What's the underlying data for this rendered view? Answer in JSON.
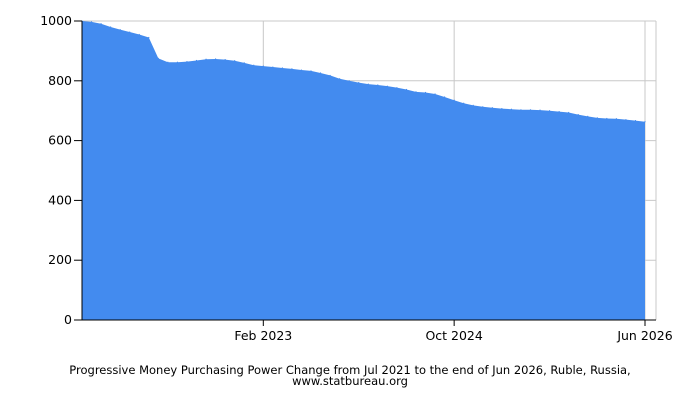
{
  "chart_data": {
    "type": "area",
    "title": "",
    "xlabel": "",
    "ylabel": "",
    "caption": "Progressive Money Purchasing Power Change from Jul 2021 to the end of Jun 2026, Ruble, Russia, www.statbureau.org",
    "x_tick_labels": [
      "Feb 2023",
      "Oct 2024",
      "Jun 2026"
    ],
    "y_tick_labels": [
      "0",
      "200",
      "400",
      "600",
      "800",
      "1000"
    ],
    "ylim": [
      0,
      1000
    ],
    "grid": true,
    "legend": "none",
    "fill_color": "#438BEF",
    "series": [
      {
        "x": [
          "Jul 2021",
          "Aug 2021",
          "Sep 2021",
          "Oct 2021",
          "Nov 2021",
          "Dec 2021",
          "Jan 2022",
          "Feb 2022",
          "Mar 2022",
          "Apr 2022",
          "May 2022",
          "Jun 2022",
          "Jul 2022",
          "Aug 2022",
          "Sep 2022",
          "Oct 2022",
          "Nov 2022",
          "Dec 2022",
          "Jan 2023",
          "Feb 2023",
          "Mar 2023",
          "Apr 2023",
          "May 2023",
          "Jun 2023",
          "Jul 2023",
          "Aug 2023",
          "Sep 2023",
          "Oct 2023",
          "Nov 2023",
          "Dec 2023",
          "Jan 2024",
          "Feb 2024",
          "Mar 2024",
          "Apr 2024",
          "May 2024",
          "Jun 2024",
          "Jul 2024",
          "Aug 2024",
          "Sep 2024",
          "Oct 2024",
          "Nov 2024",
          "Dec 2024",
          "Jan 2025",
          "Feb 2025",
          "Mar 2025",
          "Apr 2025",
          "May 2025",
          "Jun 2025",
          "Jul 2025",
          "Aug 2025",
          "Sep 2025",
          "Oct 2025",
          "Nov 2025",
          "Dec 2025",
          "Jan 2026",
          "Feb 2026",
          "Mar 2026",
          "Apr 2026",
          "May 2026",
          "Jun 2026"
        ],
        "values": [
          1000,
          997,
          991,
          980,
          971,
          963,
          955,
          945,
          875,
          862,
          862,
          864,
          868,
          872,
          873,
          871,
          867,
          860,
          852,
          849,
          846,
          843,
          840,
          836,
          833,
          826,
          818,
          807,
          800,
          794,
          789,
          786,
          782,
          777,
          771,
          763,
          761,
          756,
          746,
          735,
          725,
          718,
          713,
          710,
          707,
          705,
          703,
          703,
          702,
          700,
          697,
          694,
          687,
          681,
          676,
          674,
          673,
          670,
          667,
          663
        ]
      }
    ]
  }
}
